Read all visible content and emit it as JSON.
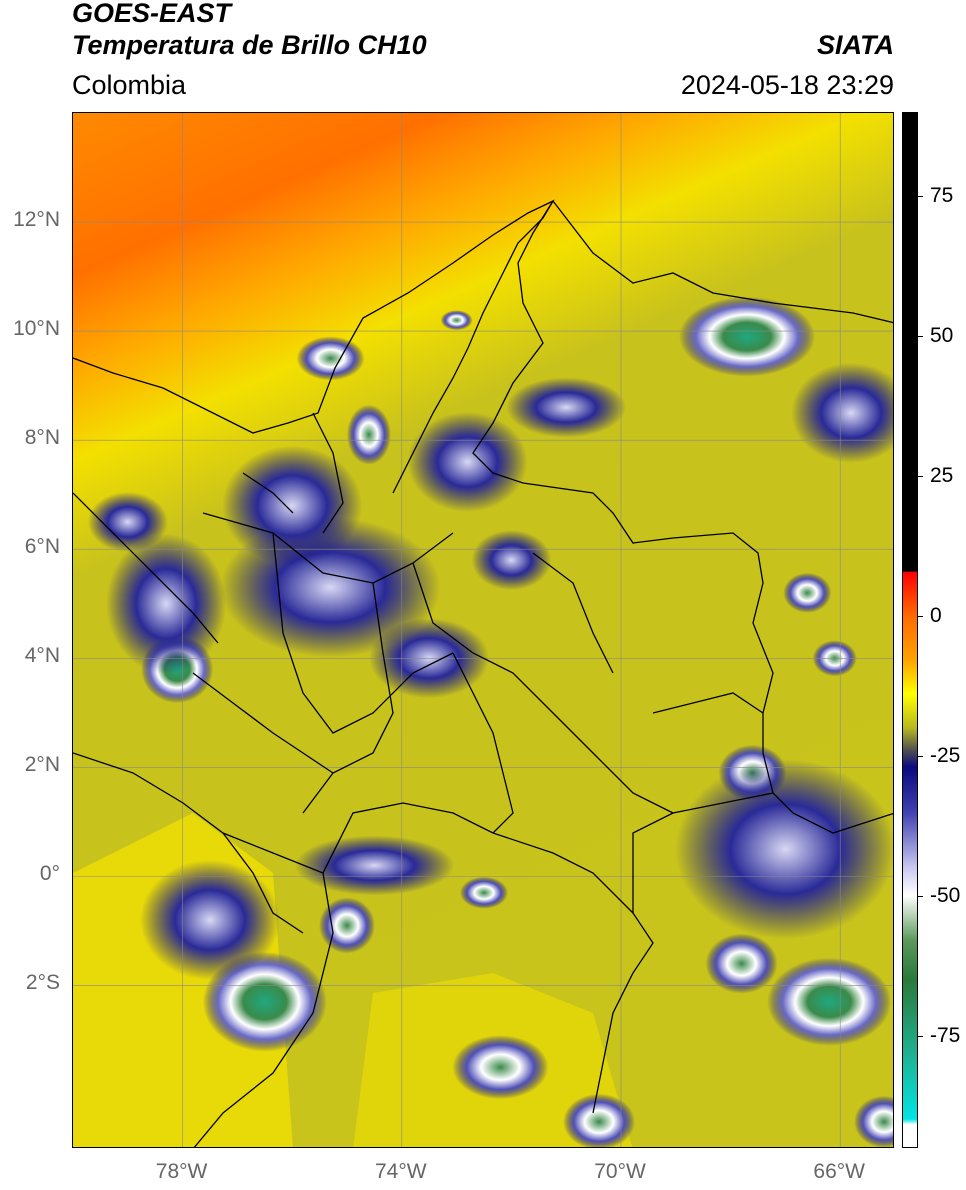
{
  "header": {
    "line1": "GOES-EAST",
    "line2": "Temperatura de Brillo CH10",
    "region": "Colombia",
    "agency": "SIATA",
    "timestamp": "2024-05-18 23:29"
  },
  "map": {
    "lon_range": [
      -80,
      -65
    ],
    "lat_range": [
      -5,
      14
    ],
    "lat_ticks": [
      {
        "value": 12,
        "label": "12°N"
      },
      {
        "value": 10,
        "label": "10°N"
      },
      {
        "value": 8,
        "label": "8°N"
      },
      {
        "value": 6,
        "label": "6°N"
      },
      {
        "value": 4,
        "label": "4°N"
      },
      {
        "value": 2,
        "label": "2°N"
      },
      {
        "value": 0,
        "label": "0°"
      },
      {
        "value": -2,
        "label": "2°S"
      }
    ],
    "lon_ticks": [
      {
        "value": -78,
        "label": "78°W"
      },
      {
        "value": -74,
        "label": "74°W"
      },
      {
        "value": -70,
        "label": "70°W"
      },
      {
        "value": -66,
        "label": "66°W"
      }
    ],
    "grid": true,
    "colors": {
      "ocean_warm": "#ff7a00",
      "mid": "#f5e400",
      "land": "#c8c41c",
      "cloud_blue": "#1a1a8c",
      "cloud_white": "#ffffff",
      "cloud_green": "#3a8a4a",
      "cloud_teal": "#20b090"
    }
  },
  "colorbar": {
    "range": [
      -95,
      90
    ],
    "ticks": [
      {
        "value": 75,
        "label": "75"
      },
      {
        "value": 50,
        "label": "50"
      },
      {
        "value": 25,
        "label": "25"
      },
      {
        "value": 0,
        "label": "0"
      },
      {
        "value": -25,
        "label": "-25"
      },
      {
        "value": -50,
        "label": "-50"
      },
      {
        "value": -75,
        "label": "-75"
      }
    ],
    "stops": [
      {
        "value": 90,
        "color": "#000000"
      },
      {
        "value": 8,
        "color": "#000000"
      },
      {
        "value": 7.9,
        "color": "#ff0000"
      },
      {
        "value": 0,
        "color": "#ff6a00"
      },
      {
        "value": -8,
        "color": "#ffa500"
      },
      {
        "value": -14,
        "color": "#ffff00"
      },
      {
        "value": -20,
        "color": "#b8b820"
      },
      {
        "value": -24,
        "color": "#505050"
      },
      {
        "value": -27,
        "color": "#0a0a80"
      },
      {
        "value": -35,
        "color": "#4040b0"
      },
      {
        "value": -45,
        "color": "#c8c8f0"
      },
      {
        "value": -50,
        "color": "#ffffff"
      },
      {
        "value": -58,
        "color": "#5a9a5a"
      },
      {
        "value": -65,
        "color": "#2a7a3a"
      },
      {
        "value": -78,
        "color": "#20b090"
      },
      {
        "value": -90,
        "color": "#00e5e5"
      },
      {
        "value": -91,
        "color": "#ffffff"
      },
      {
        "value": -95,
        "color": "#ffffff"
      }
    ]
  }
}
